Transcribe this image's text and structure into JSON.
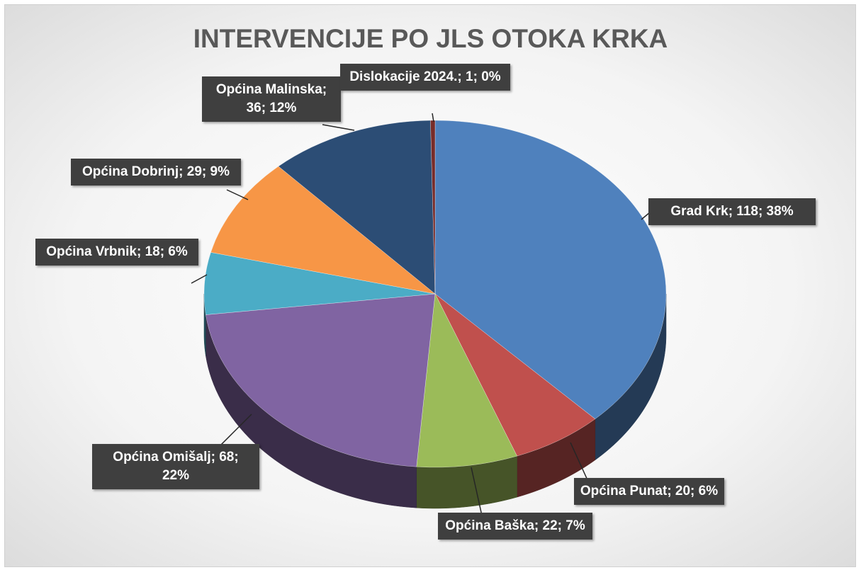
{
  "chart_data": {
    "type": "pie",
    "title": "INTERVENCIJE PO JLS OTOKA KRKA",
    "values": [
      118,
      20,
      22,
      68,
      18,
      29,
      36,
      1
    ],
    "value_labels": [
      "Grad Krk; 118; 38%",
      "Općina Punat; 20; 6%",
      "Općina Baška; 22; 7%",
      "Općina Omišalj; 68; 22%",
      "Općina Vrbnik; 18; 6%",
      "Općina Dobrinj; 29; 9%",
      "Općina Malinska; 36; 12%",
      "Dislokacije 2024.; 1; 0%"
    ],
    "colors": [
      "#4f81bd",
      "#c0504d",
      "#9bbb59",
      "#8064a2",
      "#4bacc6",
      "#f79646",
      "#2c4d75",
      "#772c2a"
    ]
  }
}
